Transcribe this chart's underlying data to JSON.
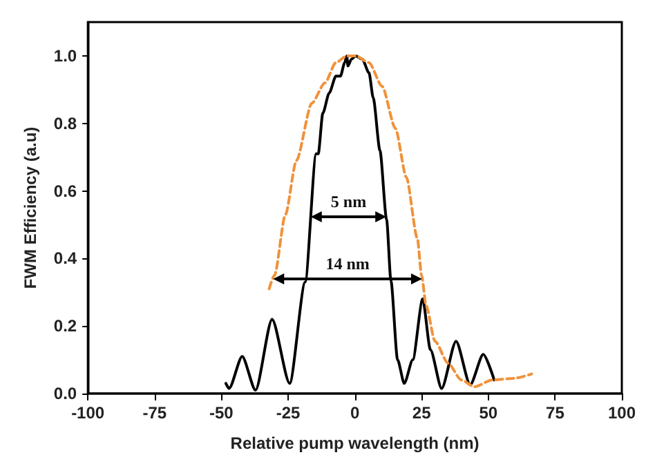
{
  "chart_data": {
    "type": "line",
    "xlabel": "Relative pump wavelength (nm)",
    "ylabel": "FWM Efficiency (a.u)",
    "xlim": [
      -100,
      100
    ],
    "xticks": [
      -100,
      -75,
      -50,
      -25,
      0,
      25,
      50,
      75,
      100
    ],
    "ylim": [
      0,
      1.1
    ],
    "yticks": [
      {
        "value": 0,
        "label": "0.0"
      },
      {
        "value": 0.2,
        "label": "0.2"
      },
      {
        "value": 0.4,
        "label": "0.4"
      },
      {
        "value": 0.6,
        "label": "0.6"
      },
      {
        "value": 0.8,
        "label": "0.8"
      },
      {
        "value": 1,
        "label": "1.0"
      }
    ],
    "grid": false,
    "marker": "none",
    "series": [
      {
        "color": "#000000",
        "line_style": "solid",
        "x": [
          -48.3,
          -47.1,
          -42.2,
          -37.2,
          -31,
          -24.4,
          -18.6,
          -14.5,
          -13.7,
          -12,
          -9.6,
          -7.1,
          -5.4,
          -3.8,
          -3,
          -2.6,
          -1.3,
          0.3,
          2.8,
          5.3,
          6.9,
          9.4,
          11.9,
          13.5,
          16,
          18.5,
          21.7,
          25.4,
          28.3,
          32.5,
          37.9,
          43.2,
          48.1,
          52.2
        ],
        "values": [
          0.03,
          0.015,
          0.11,
          0.01,
          0.22,
          0.03,
          0.33,
          0.71,
          0.71,
          0.83,
          0.89,
          0.94,
          0.94,
          0.98,
          1.0,
          0.97,
          0.99,
          1.0,
          0.99,
          0.95,
          0.875,
          0.72,
          0.515,
          0.335,
          0.1,
          0.03,
          0.1,
          0.28,
          0.13,
          0.015,
          0.155,
          0.026,
          0.116,
          0.04
        ]
      },
      {
        "color": "#f0923a",
        "line_style": "dashed",
        "x": [
          -32.1,
          -30.1,
          -26,
          -21.9,
          -16.1,
          -11.2,
          -7.1,
          -3,
          0.3,
          5.3,
          10.2,
          15.2,
          19.3,
          23.4,
          25,
          26.7,
          30,
          34.9,
          39.9,
          44.8,
          51.4,
          59.6,
          66.2
        ],
        "values": [
          0.31,
          0.35,
          0.53,
          0.69,
          0.86,
          0.92,
          0.98,
          1.0,
          1.0,
          0.98,
          0.91,
          0.785,
          0.64,
          0.46,
          0.35,
          0.26,
          0.155,
          0.09,
          0.04,
          0.02,
          0.04,
          0.045,
          0.058
        ]
      }
    ],
    "annotations": [
      "5 nm",
      "14 nm"
    ]
  }
}
